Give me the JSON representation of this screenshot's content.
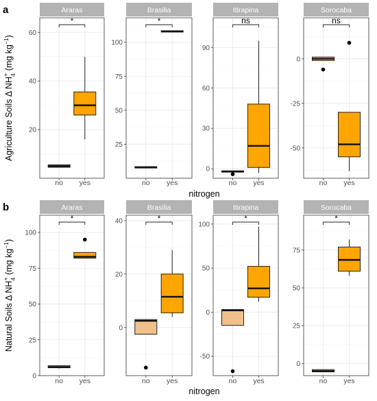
{
  "figure": {
    "x_title": "nitrogen"
  },
  "style": {
    "strip_fill": "#b3b3b3",
    "strip_text": "#ffffff",
    "grid": "#ebebeb",
    "box_no": "#f0c08a",
    "box_yes": "#ffa500",
    "axis_text": "#4d4d4d",
    "median_no_box": "#000000"
  },
  "chart_data": [
    {
      "type": "box",
      "panel_tag": "a",
      "ylabel": "Agriculture Soils Δ NH4+ (mg kg-1)",
      "ylabel_parts": {
        "pre": "Agriculture Soils Δ NH",
        "sub": "4",
        "sup": "+",
        "mid": " (mg kg",
        "sup2": "−1",
        "post": ")"
      },
      "categories": [
        "no",
        "yes"
      ],
      "facets": [
        {
          "site": "Araras",
          "ylim": [
            0,
            66
          ],
          "yticks": [
            20,
            40,
            60
          ],
          "sig": "*",
          "boxes": [
            {
              "x": "no",
              "q1": 4.5,
              "median": 5,
              "q3": 5.5,
              "whisker_low": 4.5,
              "whisker_high": 5.5,
              "outliers": []
            },
            {
              "x": "yes",
              "q1": 26,
              "median": 30,
              "q3": 35.5,
              "whisker_low": 16,
              "whisker_high": 50,
              "outliers": []
            }
          ]
        },
        {
          "site": "Brasilia",
          "ylim": [
            0,
            118
          ],
          "yticks": [
            25,
            50,
            75,
            100
          ],
          "sig": "*",
          "boxes": [
            {
              "x": "no",
              "q1": 7.5,
              "median": 8,
              "q3": 8.5,
              "whisker_low": 7.5,
              "whisker_high": 8.5,
              "outliers": []
            },
            {
              "x": "yes",
              "q1": 107.5,
              "median": 108,
              "q3": 108.5,
              "whisker_low": 107.5,
              "whisker_high": 108.5,
              "outliers": []
            }
          ]
        },
        {
          "site": "Itirapina",
          "ylim": [
            -7,
            112
          ],
          "yticks": [
            0,
            30,
            60,
            90
          ],
          "sig": "ns",
          "boxes": [
            {
              "x": "no",
              "q1": -2.5,
              "median": -2,
              "q3": -1.5,
              "whisker_low": -2.5,
              "whisker_high": -1.5,
              "outliers": [
                -4
              ]
            },
            {
              "x": "yes",
              "q1": 1,
              "median": 17,
              "q3": 48,
              "whisker_low": -3,
              "whisker_high": 95,
              "outliers": []
            }
          ]
        },
        {
          "site": "Sorocaba",
          "ylim": [
            -67,
            23
          ],
          "yticks": [
            -50,
            -25,
            0
          ],
          "sig": "ns",
          "boxes": [
            {
              "x": "no",
              "q1": -1,
              "median": 0,
              "q3": 1,
              "whisker_low": -1,
              "whisker_high": 1,
              "outliers": [
                -6
              ]
            },
            {
              "x": "yes",
              "q1": -55,
              "median": -48,
              "q3": -30,
              "whisker_low": -63,
              "whisker_high": -30,
              "outliers": [
                9
              ]
            }
          ]
        }
      ]
    },
    {
      "type": "box",
      "panel_tag": "b",
      "ylabel": "Natural Soils Δ NH4+ (mg kg-1)",
      "ylabel_parts": {
        "pre": "Natural Soils Δ NH",
        "sub": "4",
        "sup": "+",
        "mid": " (mg kg",
        "sup2": "−1",
        "post": ")"
      },
      "categories": [
        "no",
        "yes"
      ],
      "facets": [
        {
          "site": "Araras",
          "ylim": [
            0,
            112
          ],
          "yticks": [
            0,
            25,
            50,
            75,
            100
          ],
          "sig": "*",
          "boxes": [
            {
              "x": "no",
              "q1": 5.5,
              "median": 6,
              "q3": 7,
              "whisker_low": 5,
              "whisker_high": 7,
              "outliers": []
            },
            {
              "x": "yes",
              "q1": 82,
              "median": 83,
              "q3": 86,
              "whisker_low": 82,
              "whisker_high": 86,
              "outliers": [
                95
              ]
            }
          ]
        },
        {
          "site": "Brasilia",
          "ylim": [
            -18,
            42
          ],
          "yticks": [
            0,
            20,
            40
          ],
          "sig": "*",
          "boxes": [
            {
              "x": "no",
              "q1": -2.5,
              "median": 2.5,
              "q3": 3,
              "whisker_low": -2.5,
              "whisker_high": 3,
              "outliers": [
                -15
              ]
            },
            {
              "x": "yes",
              "q1": 5.5,
              "median": 11.5,
              "q3": 20,
              "whisker_low": 4,
              "whisker_high": 29,
              "outliers": []
            }
          ]
        },
        {
          "site": "Itirapina",
          "ylim": [
            -72,
            110
          ],
          "yticks": [
            -50,
            0,
            50,
            100
          ],
          "sig": "*",
          "boxes": [
            {
              "x": "no",
              "q1": -15,
              "median": 2,
              "q3": 3,
              "whisker_low": -15,
              "whisker_high": 3,
              "outliers": [
                -67
              ]
            },
            {
              "x": "yes",
              "q1": 17,
              "median": 27,
              "q3": 52,
              "whisker_low": 12,
              "whisker_high": 97,
              "outliers": []
            }
          ]
        },
        {
          "site": "Sorocaba",
          "ylim": [
            -8,
            98
          ],
          "yticks": [
            0,
            25,
            50,
            75
          ],
          "sig": "*",
          "boxes": [
            {
              "x": "no",
              "q1": -5.5,
              "median": -5,
              "q3": -4,
              "whisker_low": -5.5,
              "whisker_high": -4,
              "outliers": []
            },
            {
              "x": "yes",
              "q1": 61,
              "median": 68.5,
              "q3": 77,
              "whisker_low": 58,
              "whisker_high": 82,
              "outliers": []
            }
          ]
        }
      ]
    }
  ]
}
